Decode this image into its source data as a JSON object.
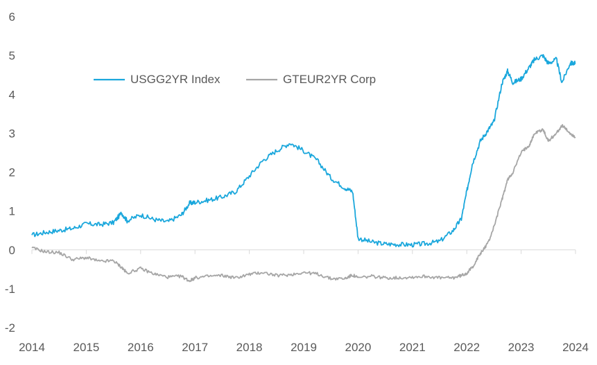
{
  "colors": {
    "us": "#1aa7dc",
    "eur": "#a6a6a6",
    "axis": "#d9d9d9",
    "text": "#595959"
  },
  "chart_data": {
    "type": "line",
    "title": "",
    "xlabel": "",
    "ylabel": "",
    "xlim": [
      2014,
      2024
    ],
    "ylim": [
      -2,
      6
    ],
    "y_ticks": [
      "-2",
      "-1",
      "0",
      "1",
      "2",
      "3",
      "4",
      "5",
      "6"
    ],
    "x_ticks": [
      "2014",
      "2015",
      "2016",
      "2017",
      "2018",
      "2019",
      "2020",
      "2021",
      "2022",
      "2023",
      "2024"
    ],
    "grid": false,
    "legend": {
      "position": "top-left",
      "entries": [
        "USGG2YR Index",
        "GTEUR2YR Corp"
      ]
    },
    "x": [
      2014.0,
      2014.25,
      2014.5,
      2014.75,
      2015.0,
      2015.25,
      2015.5,
      2015.65,
      2015.75,
      2016.0,
      2016.25,
      2016.5,
      2016.75,
      2016.9,
      2017.0,
      2017.25,
      2017.5,
      2017.75,
      2018.0,
      2018.25,
      2018.5,
      2018.75,
      2019.0,
      2019.25,
      2019.5,
      2019.75,
      2019.9,
      2020.0,
      2020.25,
      2020.5,
      2020.75,
      2021.0,
      2021.25,
      2021.5,
      2021.75,
      2021.9,
      2022.0,
      2022.1,
      2022.25,
      2022.4,
      2022.5,
      2022.65,
      2022.75,
      2022.85,
      2023.0,
      2023.15,
      2023.25,
      2023.4,
      2023.5,
      2023.65,
      2023.75,
      2023.9,
      2024.0
    ],
    "series": [
      {
        "name": "USGG2YR Index",
        "values": [
          0.38,
          0.45,
          0.5,
          0.55,
          0.67,
          0.65,
          0.7,
          0.95,
          0.75,
          0.9,
          0.78,
          0.72,
          0.9,
          1.2,
          1.22,
          1.28,
          1.36,
          1.5,
          1.9,
          2.3,
          2.55,
          2.75,
          2.55,
          2.3,
          1.85,
          1.6,
          1.5,
          0.3,
          0.2,
          0.15,
          0.14,
          0.13,
          0.16,
          0.22,
          0.5,
          0.8,
          1.5,
          2.2,
          2.8,
          3.1,
          3.3,
          4.3,
          4.6,
          4.3,
          4.4,
          4.7,
          4.9,
          5.0,
          4.8,
          4.9,
          4.3,
          4.8,
          4.8
        ]
      },
      {
        "name": "GTEUR2YR Corp",
        "values": [
          0.05,
          -0.05,
          -0.07,
          -0.25,
          -0.2,
          -0.3,
          -0.28,
          -0.45,
          -0.6,
          -0.48,
          -0.62,
          -0.7,
          -0.68,
          -0.8,
          -0.72,
          -0.68,
          -0.66,
          -0.72,
          -0.63,
          -0.58,
          -0.66,
          -0.64,
          -0.58,
          -0.62,
          -0.74,
          -0.74,
          -0.65,
          -0.72,
          -0.68,
          -0.72,
          -0.72,
          -0.7,
          -0.68,
          -0.72,
          -0.72,
          -0.66,
          -0.6,
          -0.45,
          -0.1,
          0.2,
          0.6,
          1.3,
          1.8,
          2.0,
          2.5,
          2.7,
          3.0,
          3.1,
          2.8,
          3.0,
          3.2,
          3.0,
          2.9
        ]
      }
    ]
  }
}
